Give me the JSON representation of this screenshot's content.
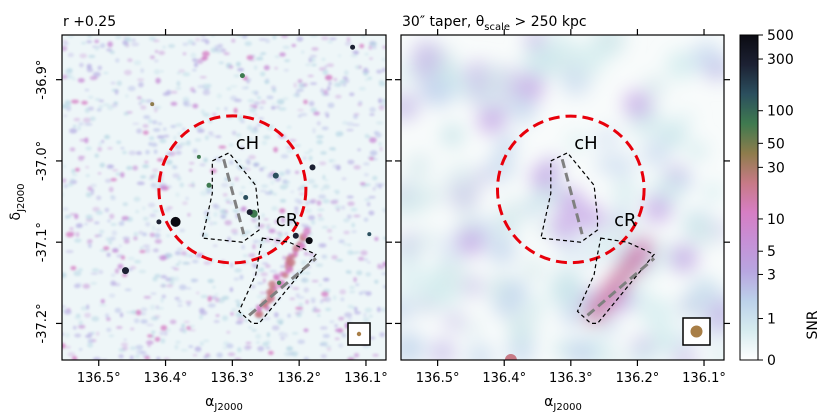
{
  "chart_data": [
    {
      "type": "heatmap",
      "title": "r +0.25",
      "xlabel": "α",
      "xlabel_sub": "J2000",
      "ylabel": "δ",
      "ylabel_sub": "J2000",
      "x_ticks": [
        "136.5°",
        "136.4°",
        "136.3°",
        "136.2°",
        "136.1°"
      ],
      "x_tick_values": [
        136.5,
        136.4,
        136.3,
        136.2,
        136.1
      ],
      "y_ticks": [
        "-36.9°",
        "-37.0°",
        "-37.1°",
        "-37.2°"
      ],
      "y_tick_values": [
        -36.9,
        -37.0,
        -37.1,
        -37.2
      ],
      "xlim": [
        136.555,
        136.07
      ],
      "ylim": [
        -37.245,
        -36.845
      ],
      "annotations": [
        {
          "label": "cH",
          "ra": 136.295,
          "dec": -36.985
        },
        {
          "label": "cR",
          "ra": 136.235,
          "dec": -37.08
        }
      ],
      "beam_marker": "small"
    },
    {
      "type": "heatmap",
      "title_main": "30″ taper, θ",
      "title_sub": "scale",
      "title_tail": " > 250 kpc",
      "xlabel": "α",
      "xlabel_sub": "J2000",
      "x_ticks": [
        "136.5°",
        "136.4°",
        "136.3°",
        "136.2°",
        "136.1°"
      ],
      "x_tick_values": [
        136.5,
        136.4,
        136.3,
        136.2,
        136.1
      ],
      "y_tick_values": [
        -36.9,
        -37.0,
        -37.1,
        -37.2
      ],
      "xlim": [
        136.555,
        136.07
      ],
      "ylim": [
        -37.245,
        -36.845
      ],
      "annotations": [
        {
          "label": "cH",
          "ra": 136.295,
          "dec": -36.985
        },
        {
          "label": "cR",
          "ra": 136.235,
          "dec": -37.08
        }
      ],
      "beam_marker": "large"
    }
  ],
  "colorbar": {
    "label": "SNR",
    "ticks": [
      "500",
      "300",
      "100",
      "50",
      "30",
      "10",
      "5",
      "3",
      "1",
      "0"
    ],
    "tick_values": [
      500,
      300,
      100,
      50,
      30,
      10,
      5,
      3,
      1,
      0
    ],
    "colors": [
      "#ffffff",
      "#d6ecef",
      "#bcd1ea",
      "#b8a6e0",
      "#c690d6",
      "#d67ec4",
      "#c77a86",
      "#8e7c4c",
      "#3f7a4f",
      "#2b4f5e",
      "#1c2133",
      "#0b0b12"
    ]
  },
  "overlay": {
    "circle_color": "#e8000b",
    "region_color": "#000000",
    "axis_color": "#808080"
  }
}
